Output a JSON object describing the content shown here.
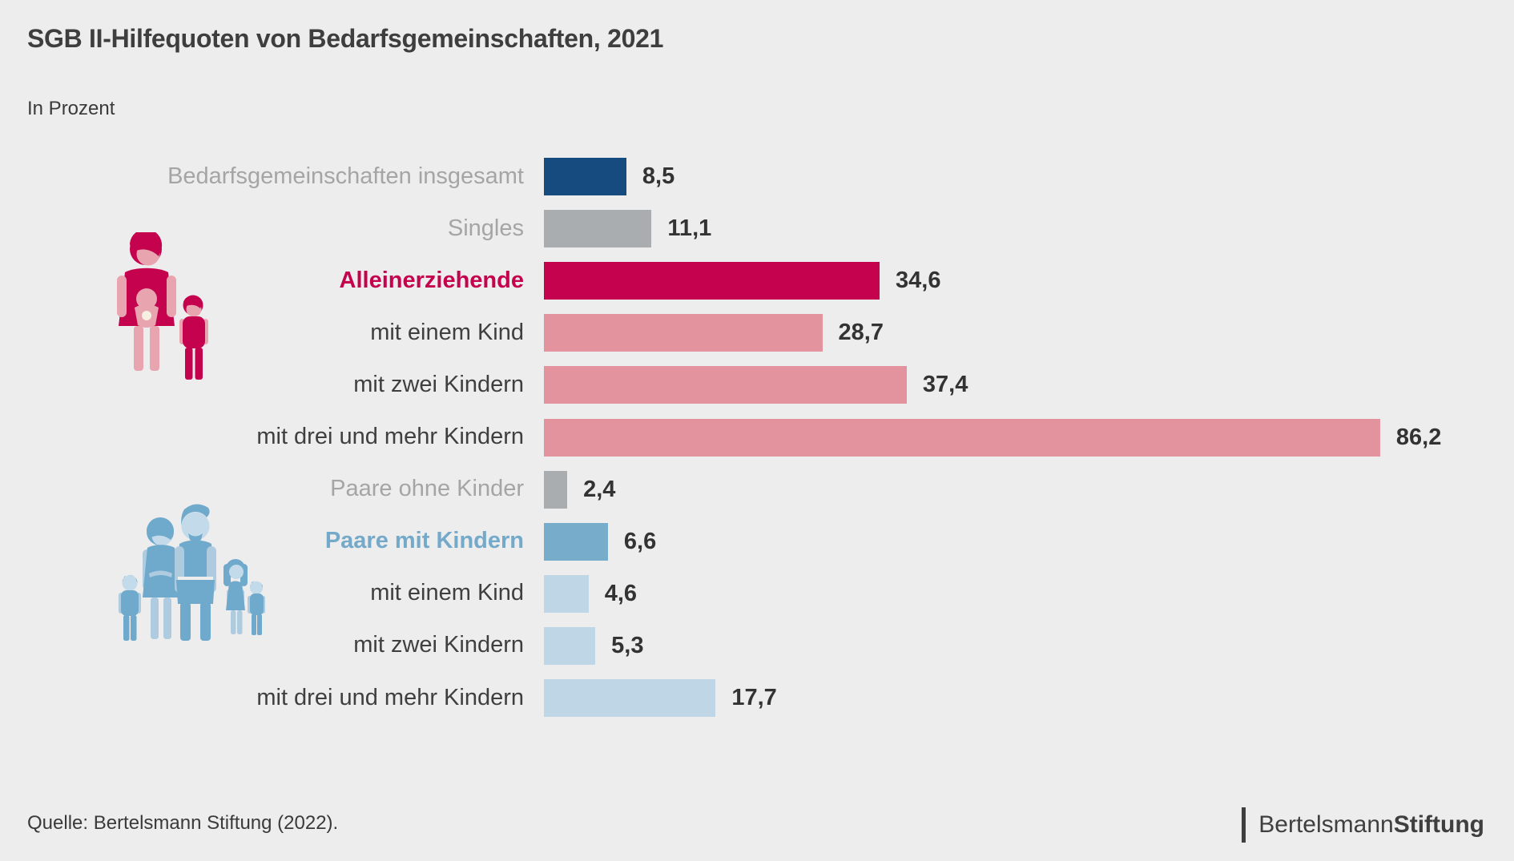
{
  "title": "SGB II-Hilfequoten von Bedarfsgemeinschaften, 2021",
  "subtitle": "In Prozent",
  "source": "Quelle: Bertelsmann Stiftung (2022).",
  "logo": {
    "name_regular": "Bertelsmann",
    "name_bold": "Stiftung"
  },
  "icons": {
    "single_parent_family_icon": "mother holding baby with one child, red pictogram",
    "couple_with_children_icon": "couple with three children, blue pictogram"
  },
  "colors": {
    "background": "#EDEDED",
    "total_bar": "#164B7F",
    "neutral_bar": "#A9ADB0",
    "single_parent_bar": "#C4024D",
    "single_parent_light_bar": "#E2939E",
    "couple_bar": "#77ADCB",
    "couple_light_bar": "#BFD6E6",
    "label_muted": "#A5A5A5",
    "label_dark": "#3F3F3F",
    "label_red": "#C4024D",
    "label_blue": "#74A9C9",
    "value_text": "#333333"
  },
  "chart_data": {
    "type": "bar",
    "orientation": "horizontal",
    "title": "SGB II-Hilfequoten von Bedarfsgemeinschaften, 2021",
    "xlabel": "In Prozent",
    "xlim": [
      0,
      90
    ],
    "grid": false,
    "legend": false,
    "categories": [
      "Bedarfsgemeinschaften insgesamt",
      "Singles",
      "Alleinerziehende",
      "mit einem Kind",
      "mit zwei Kindern",
      "mit drei und mehr Kindern",
      "Paare ohne Kinder",
      "Paare mit Kindern",
      "mit einem Kind",
      "mit zwei Kindern",
      "mit drei und mehr Kindern"
    ],
    "values": [
      8.5,
      11.1,
      34.6,
      28.7,
      37.4,
      86.2,
      2.4,
      6.6,
      4.6,
      5.3,
      17.7
    ],
    "rows": [
      {
        "label": "Bedarfsgemeinschaften insgesamt",
        "value": 8.5,
        "display_value": "8,5",
        "bar_color": "total_bar",
        "label_style": "muted"
      },
      {
        "label": "Singles",
        "value": 11.1,
        "display_value": "11,1",
        "bar_color": "neutral_bar",
        "label_style": "muted"
      },
      {
        "label": "Alleinerziehende",
        "value": 34.6,
        "display_value": "34,6",
        "bar_color": "single_parent_bar",
        "label_style": "red"
      },
      {
        "label": "mit einem Kind",
        "value": 28.7,
        "display_value": "28,7",
        "bar_color": "single_parent_light_bar",
        "label_style": "dark"
      },
      {
        "label": "mit zwei Kindern",
        "value": 37.4,
        "display_value": "37,4",
        "bar_color": "single_parent_light_bar",
        "label_style": "dark"
      },
      {
        "label": "mit drei und mehr Kindern",
        "value": 86.2,
        "display_value": "86,2",
        "bar_color": "single_parent_light_bar",
        "label_style": "dark"
      },
      {
        "label": "Paare ohne Kinder",
        "value": 2.4,
        "display_value": "2,4",
        "bar_color": "neutral_bar",
        "label_style": "muted"
      },
      {
        "label": "Paare mit Kindern",
        "value": 6.6,
        "display_value": "6,6",
        "bar_color": "couple_bar",
        "label_style": "blue"
      },
      {
        "label": "mit einem Kind",
        "value": 4.6,
        "display_value": "4,6",
        "bar_color": "couple_light_bar",
        "label_style": "dark"
      },
      {
        "label": "mit zwei Kindern",
        "value": 5.3,
        "display_value": "5,3",
        "bar_color": "couple_light_bar",
        "label_style": "dark"
      },
      {
        "label": "mit drei und mehr Kindern",
        "value": 17.7,
        "display_value": "17,7",
        "bar_color": "couple_light_bar",
        "label_style": "dark"
      }
    ]
  }
}
